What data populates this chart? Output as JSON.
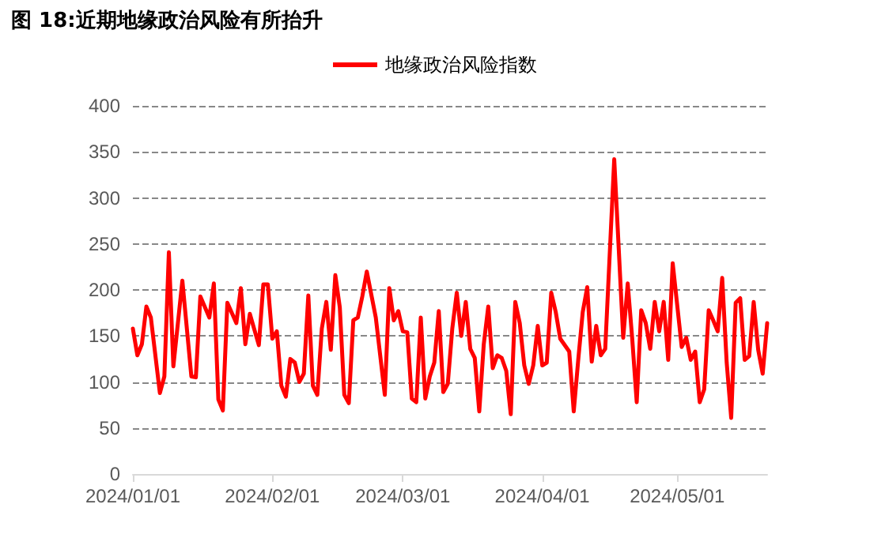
{
  "chart_data": {
    "type": "line",
    "title": "图 18:近期地缘政治风险有所抬升",
    "x": [
      "2024-01-01",
      "2024-01-02",
      "2024-01-03",
      "2024-01-04",
      "2024-01-05",
      "2024-01-07",
      "2024-01-08",
      "2024-01-09",
      "2024-01-10",
      "2024-01-12",
      "2024-01-14",
      "2024-01-15",
      "2024-01-16",
      "2024-01-18",
      "2024-01-19",
      "2024-01-20",
      "2024-01-21",
      "2024-01-22",
      "2024-01-24",
      "2024-01-25",
      "2024-01-26",
      "2024-01-27",
      "2024-01-29",
      "2024-01-30",
      "2024-01-31",
      "2024-02-01",
      "2024-02-02",
      "2024-02-03",
      "2024-02-04",
      "2024-02-05",
      "2024-02-06",
      "2024-02-07",
      "2024-02-08",
      "2024-02-09",
      "2024-02-10",
      "2024-02-11",
      "2024-02-12",
      "2024-02-13",
      "2024-02-14",
      "2024-02-15",
      "2024-02-16",
      "2024-02-17",
      "2024-02-18",
      "2024-02-19",
      "2024-02-20",
      "2024-02-21",
      "2024-02-22",
      "2024-02-24",
      "2024-02-26",
      "2024-02-27",
      "2024-02-28",
      "2024-02-29",
      "2024-03-01",
      "2024-03-02",
      "2024-03-03",
      "2024-03-04",
      "2024-03-05",
      "2024-03-06",
      "2024-03-07",
      "2024-03-08",
      "2024-03-09",
      "2024-03-10",
      "2024-03-11",
      "2024-03-12",
      "2024-03-13",
      "2024-03-14",
      "2024-03-15",
      "2024-03-16",
      "2024-03-17",
      "2024-03-18",
      "2024-03-19",
      "2024-03-20",
      "2024-03-21",
      "2024-03-22",
      "2024-03-23",
      "2024-03-24",
      "2024-03-25",
      "2024-03-26",
      "2024-03-27",
      "2024-03-28",
      "2024-03-29",
      "2024-03-30",
      "2024-03-31",
      "2024-04-01",
      "2024-04-02",
      "2024-04-03",
      "2024-04-04",
      "2024-04-05",
      "2024-04-07",
      "2024-04-08",
      "2024-04-09",
      "2024-04-10",
      "2024-04-11",
      "2024-04-12",
      "2024-04-13",
      "2024-04-14",
      "2024-04-15",
      "2024-04-17",
      "2024-04-19",
      "2024-04-20",
      "2024-04-21",
      "2024-04-22",
      "2024-04-23",
      "2024-04-24",
      "2024-04-25",
      "2024-04-26",
      "2024-04-27",
      "2024-04-28",
      "2024-04-29",
      "2024-04-30",
      "2024-05-02",
      "2024-05-03",
      "2024-05-04",
      "2024-05-05",
      "2024-05-06",
      "2024-05-07",
      "2024-05-08",
      "2024-05-09",
      "2024-05-10",
      "2024-05-11",
      "2024-05-12",
      "2024-05-13",
      "2024-05-14",
      "2024-05-15",
      "2024-05-16",
      "2024-05-17",
      "2024-05-18",
      "2024-05-19",
      "2024-05-20",
      "2024-05-21"
    ],
    "series": [
      {
        "name": "地缘政治风险指数",
        "color": "#ff0000",
        "values": [
          158,
          129,
          141,
          182,
          170,
          88,
          106,
          241,
          117,
          210,
          106,
          105,
          193,
          170,
          207,
          81,
          69,
          186,
          164,
          202,
          141,
          174,
          140,
          206,
          206,
          147,
          155,
          96,
          84,
          125,
          121,
          100,
          109,
          194,
          96,
          86,
          158,
          187,
          135,
          216,
          181,
          86,
          77,
          167,
          170,
          193,
          220,
          170,
          86,
          202,
          167,
          177,
          155,
          154,
          82,
          78,
          170,
          82,
          106,
          121,
          177,
          89,
          98,
          158,
          197,
          150,
          187,
          136,
          126,
          68,
          141,
          182,
          115,
          129,
          126,
          112,
          65,
          187,
          164,
          118,
          98,
          118,
          161,
          118,
          121,
          197,
          176,
          147,
          133,
          68,
          124,
          176,
          203,
          122,
          161,
          129,
          136,
          342,
          148,
          207,
          147,
          78,
          178,
          164,
          136,
          187,
          155,
          187,
          124,
          229,
          138,
          148,
          124,
          133,
          78,
          92,
          178,
          167,
          155,
          213,
          121,
          61,
          186,
          191,
          124,
          128,
          187,
          135,
          109,
          164
        ]
      }
    ],
    "xlim": [
      "2024-01-01",
      "2024-05-21"
    ],
    "xticks": [
      {
        "value": "2024-01-01",
        "label": "2024/01/01"
      },
      {
        "value": "2024-02-01",
        "label": "2024/02/01"
      },
      {
        "value": "2024-03-01",
        "label": "2024/03/01"
      },
      {
        "value": "2024-04-01",
        "label": "2024/04/01"
      },
      {
        "value": "2024-05-01",
        "label": "2024/05/01"
      }
    ],
    "ylim": [
      0,
      400
    ],
    "yticks": [
      0,
      50,
      100,
      150,
      200,
      250,
      300,
      350,
      400
    ],
    "grid": "y",
    "legend": "top",
    "marker": "none",
    "line_style": "solid"
  }
}
